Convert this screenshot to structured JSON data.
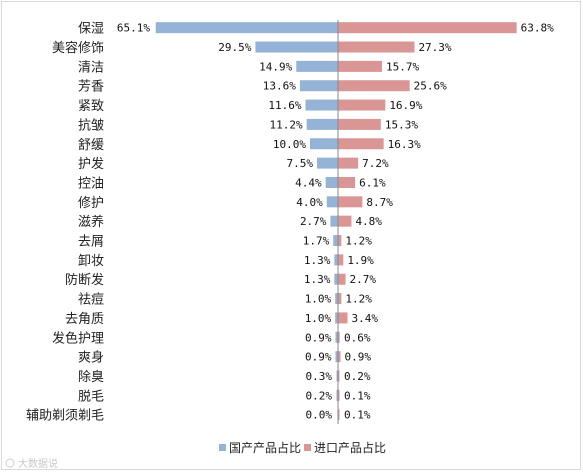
{
  "chart_data": {
    "type": "bar",
    "orientation": "horizontal-diverging",
    "categories": [
      "保湿",
      "美容修饰",
      "清洁",
      "芳香",
      "紧致",
      "抗皱",
      "舒缓",
      "护发",
      "控油",
      "修护",
      "滋养",
      "去屑",
      "卸妆",
      "防断发",
      "祛痘",
      "去角质",
      "发色护理",
      "爽身",
      "除臭",
      "脱毛",
      "辅助剃须剃毛"
    ],
    "series": [
      {
        "name": "国产产品占比",
        "color": "#95b3d7",
        "labels": [
          "65.1%",
          "29.5%",
          "14.9%",
          "13.6%",
          "11.6%",
          "11.2%",
          "10.0%",
          "7.5%",
          "4.4%",
          "4.0%",
          "2.7%",
          "1.7%",
          "1.3%",
          "1.3%",
          "1.0%",
          "1.0%",
          "0.9%",
          "0.9%",
          "0.3%",
          "0.2%",
          "0.0%"
        ],
        "values": [
          65.1,
          29.5,
          14.9,
          13.6,
          11.6,
          11.2,
          10.0,
          7.5,
          4.4,
          4.0,
          2.7,
          1.7,
          1.3,
          1.3,
          1.0,
          1.0,
          0.9,
          0.9,
          0.3,
          0.2,
          0.0
        ]
      },
      {
        "name": "进口产品占比",
        "color": "#d99694",
        "labels": [
          "63.8%",
          "27.3%",
          "15.7%",
          "25.6%",
          "16.9%",
          "15.3%",
          "16.3%",
          "7.2%",
          "6.1%",
          "8.7%",
          "4.8%",
          "1.2%",
          "1.9%",
          "2.7%",
          "1.2%",
          "3.4%",
          "0.6%",
          "0.9%",
          "0.2%",
          "0.1%",
          "0.1%"
        ],
        "values": [
          63.8,
          27.3,
          15.7,
          25.6,
          16.9,
          15.3,
          16.3,
          7.2,
          6.1,
          8.7,
          4.8,
          1.2,
          1.9,
          2.7,
          1.2,
          3.4,
          0.6,
          0.9,
          0.2,
          0.1,
          0.1
        ]
      }
    ],
    "legend_position": "bottom",
    "grid": false
  },
  "watermark": "大数据说"
}
